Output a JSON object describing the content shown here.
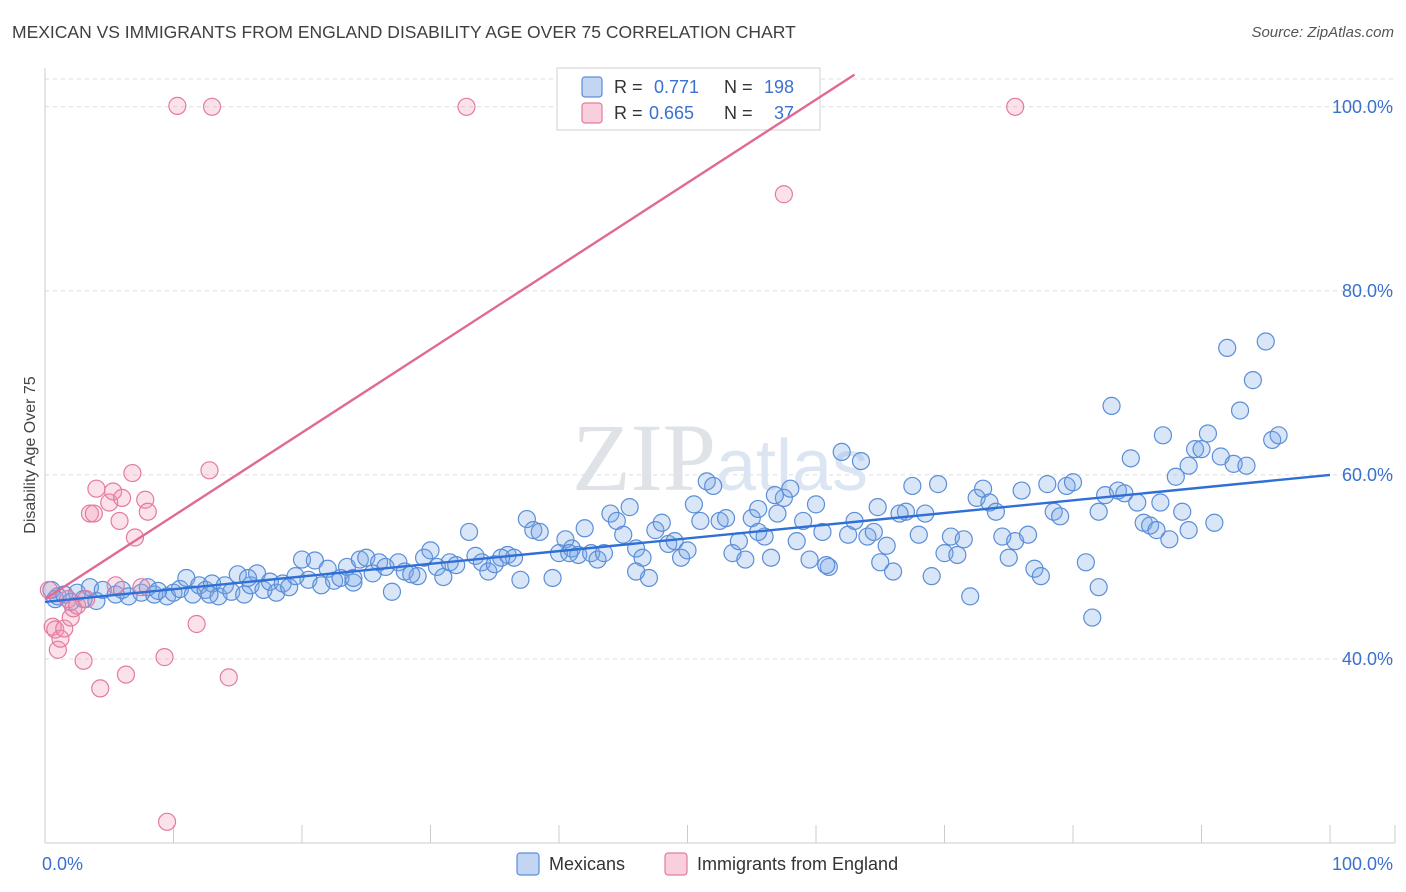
{
  "title": "MEXICAN VS IMMIGRANTS FROM ENGLAND DISABILITY AGE OVER 75 CORRELATION CHART",
  "source": "Source: ZipAtlas.com",
  "watermark": "ZIPatlas",
  "chart_data": {
    "type": "scatter",
    "ylabel": "Disability Age Over 75",
    "xlim": [
      0,
      100
    ],
    "ylim": [
      20,
      104
    ],
    "x_tick_labels": [
      {
        "value": 0,
        "label": "0.0%"
      },
      {
        "value": 100,
        "label": "100.0%"
      }
    ],
    "y_ticks": [
      {
        "value": 40,
        "label": "40.0%"
      },
      {
        "value": 60,
        "label": "60.0%"
      },
      {
        "value": 80,
        "label": "80.0%"
      },
      {
        "value": 100,
        "label": "100.0%"
      }
    ],
    "legend": {
      "r_label": "R =",
      "n_label": "N =",
      "entries": [
        {
          "name": "Mexicans",
          "r": "0.771",
          "n": "198",
          "color": "#8db4ea",
          "stroke": "#3a70d0"
        },
        {
          "name": "Immigrants from England",
          "r": "0.665",
          "n": "37",
          "color": "#f4a9c1",
          "stroke": "#e0608e"
        }
      ]
    },
    "series": [
      {
        "name": "Mexicans",
        "fill": "rgba(120,165,230,0.28)",
        "stroke": "#5b8ed8",
        "trend": {
          "x0": 0,
          "y0": 46.2,
          "x1": 100,
          "y1": 60.0,
          "color": "#2f6fd6"
        },
        "points": [
          [
            0.5,
            47.5
          ],
          [
            0.8,
            46.5
          ],
          [
            1.0,
            46.8
          ],
          [
            1.5,
            47.0
          ],
          [
            2.0,
            46.2
          ],
          [
            2.5,
            47.2
          ],
          [
            3.0,
            46.5
          ],
          [
            3.5,
            47.8
          ],
          [
            4.0,
            46.3
          ],
          [
            4.5,
            47.5
          ],
          [
            5.5,
            47.0
          ],
          [
            6.0,
            47.5
          ],
          [
            6.5,
            46.8
          ],
          [
            7.5,
            47.2
          ],
          [
            8.0,
            47.8
          ],
          [
            8.5,
            47.0
          ],
          [
            9.5,
            46.8
          ],
          [
            10.0,
            47.2
          ],
          [
            10.5,
            47.6
          ],
          [
            11.0,
            48.8
          ],
          [
            11.5,
            47.0
          ],
          [
            12.0,
            48.0
          ],
          [
            12.5,
            47.5
          ],
          [
            13.0,
            48.2
          ],
          [
            13.5,
            46.8
          ],
          [
            14.0,
            48.0
          ],
          [
            14.5,
            47.3
          ],
          [
            15.0,
            49.2
          ],
          [
            15.5,
            47.0
          ],
          [
            16.0,
            48.0
          ],
          [
            16.5,
            49.3
          ],
          [
            17.0,
            47.5
          ],
          [
            17.5,
            48.4
          ],
          [
            18.0,
            47.2
          ],
          [
            18.5,
            48.2
          ],
          [
            19.0,
            47.8
          ],
          [
            20.0,
            50.8
          ],
          [
            20.5,
            48.6
          ],
          [
            21.0,
            50.7
          ],
          [
            21.5,
            48.0
          ],
          [
            22.0,
            49.8
          ],
          [
            22.5,
            48.5
          ],
          [
            23.0,
            48.8
          ],
          [
            23.5,
            50.0
          ],
          [
            24.0,
            48.3
          ],
          [
            24.5,
            50.8
          ],
          [
            25.0,
            51.0
          ],
          [
            25.5,
            49.3
          ],
          [
            26.0,
            50.5
          ],
          [
            26.5,
            50.0
          ],
          [
            27.0,
            47.3
          ],
          [
            27.5,
            50.5
          ],
          [
            28.0,
            49.5
          ],
          [
            29.0,
            49.0
          ],
          [
            29.5,
            51.0
          ],
          [
            30.0,
            51.8
          ],
          [
            30.5,
            50.0
          ],
          [
            31.0,
            48.9
          ],
          [
            31.5,
            50.5
          ],
          [
            32.0,
            50.2
          ],
          [
            33.0,
            53.8
          ],
          [
            33.5,
            51.2
          ],
          [
            34.0,
            50.5
          ],
          [
            34.5,
            49.5
          ],
          [
            35.0,
            50.3
          ],
          [
            36.0,
            51.3
          ],
          [
            36.5,
            51.0
          ],
          [
            37.0,
            48.6
          ],
          [
            37.5,
            55.2
          ],
          [
            38.0,
            54.0
          ],
          [
            38.5,
            53.8
          ],
          [
            39.5,
            48.8
          ],
          [
            40.0,
            51.5
          ],
          [
            40.5,
            53.0
          ],
          [
            41.0,
            52.0
          ],
          [
            41.5,
            51.3
          ],
          [
            42.0,
            54.2
          ],
          [
            42.5,
            51.5
          ],
          [
            43.0,
            50.8
          ],
          [
            43.5,
            51.5
          ],
          [
            44.0,
            55.8
          ],
          [
            44.5,
            55.0
          ],
          [
            45.0,
            53.5
          ],
          [
            45.5,
            56.5
          ],
          [
            46.0,
            52.0
          ],
          [
            46.5,
            51.0
          ],
          [
            47.0,
            48.8
          ],
          [
            47.5,
            54.0
          ],
          [
            48.0,
            54.8
          ],
          [
            48.5,
            52.5
          ],
          [
            49.0,
            52.8
          ],
          [
            49.5,
            51.0
          ],
          [
            50.0,
            51.8
          ],
          [
            50.5,
            56.8
          ],
          [
            51.0,
            55.0
          ],
          [
            51.5,
            59.3
          ],
          [
            52.0,
            58.8
          ],
          [
            52.5,
            55.0
          ],
          [
            53.0,
            55.3
          ],
          [
            53.5,
            51.5
          ],
          [
            54.0,
            52.8
          ],
          [
            54.5,
            50.8
          ],
          [
            55.0,
            55.3
          ],
          [
            55.5,
            56.3
          ],
          [
            56.0,
            53.3
          ],
          [
            56.5,
            51.0
          ],
          [
            57.0,
            55.8
          ],
          [
            57.5,
            57.5
          ],
          [
            58.0,
            58.5
          ],
          [
            58.5,
            52.8
          ],
          [
            59.0,
            55.0
          ],
          [
            59.5,
            50.8
          ],
          [
            60.0,
            56.8
          ],
          [
            60.5,
            53.8
          ],
          [
            61.0,
            50.0
          ],
          [
            62.0,
            62.5
          ],
          [
            62.5,
            53.5
          ],
          [
            63.0,
            55.0
          ],
          [
            63.5,
            61.5
          ],
          [
            64.0,
            53.3
          ],
          [
            64.5,
            53.8
          ],
          [
            65.0,
            50.5
          ],
          [
            65.5,
            52.3
          ],
          [
            66.0,
            49.5
          ],
          [
            67.0,
            56.0
          ],
          [
            67.5,
            58.8
          ],
          [
            68.0,
            53.5
          ],
          [
            68.5,
            55.8
          ],
          [
            69.0,
            49.0
          ],
          [
            69.5,
            59.0
          ],
          [
            70.0,
            51.5
          ],
          [
            70.5,
            53.3
          ],
          [
            71.0,
            51.3
          ],
          [
            72.0,
            46.8
          ],
          [
            72.5,
            57.5
          ],
          [
            73.0,
            58.5
          ],
          [
            73.5,
            57.0
          ],
          [
            74.0,
            56.0
          ],
          [
            74.5,
            53.3
          ],
          [
            75.5,
            52.8
          ],
          [
            76.0,
            58.3
          ],
          [
            76.5,
            53.5
          ],
          [
            77.0,
            49.8
          ],
          [
            77.5,
            49.0
          ],
          [
            78.0,
            59.0
          ],
          [
            78.5,
            56.0
          ],
          [
            79.0,
            55.5
          ],
          [
            79.5,
            58.8
          ],
          [
            80.0,
            59.2
          ],
          [
            81.0,
            50.5
          ],
          [
            81.5,
            44.5
          ],
          [
            82.0,
            47.8
          ],
          [
            82.5,
            57.8
          ],
          [
            83.0,
            67.5
          ],
          [
            83.5,
            58.3
          ],
          [
            84.0,
            58.0
          ],
          [
            84.5,
            61.8
          ],
          [
            85.0,
            57.0
          ],
          [
            85.5,
            54.8
          ],
          [
            86.0,
            54.5
          ],
          [
            86.5,
            54.0
          ],
          [
            87.0,
            64.3
          ],
          [
            87.5,
            53.0
          ],
          [
            88.0,
            59.8
          ],
          [
            88.5,
            56.0
          ],
          [
            89.0,
            61.0
          ],
          [
            89.5,
            62.8
          ],
          [
            90.0,
            62.8
          ],
          [
            90.5,
            64.5
          ],
          [
            91.0,
            54.8
          ],
          [
            91.5,
            62.0
          ],
          [
            92.0,
            73.8
          ],
          [
            92.5,
            61.2
          ],
          [
            93.0,
            67.0
          ],
          [
            93.5,
            61.0
          ],
          [
            94.0,
            70.3
          ],
          [
            95.0,
            74.5
          ],
          [
            95.5,
            63.8
          ],
          [
            96.0,
            64.3
          ],
          [
            55.5,
            53.8
          ],
          [
            24.0,
            48.8
          ],
          [
            35.5,
            51.0
          ],
          [
            46.0,
            49.5
          ],
          [
            66.5,
            55.8
          ],
          [
            75.0,
            51.0
          ],
          [
            82.0,
            56.0
          ],
          [
            86.8,
            57.0
          ],
          [
            89.0,
            54.0
          ],
          [
            56.8,
            57.8
          ],
          [
            64.8,
            56.5
          ],
          [
            71.5,
            53.0
          ],
          [
            60.8,
            50.2
          ],
          [
            40.8,
            51.5
          ],
          [
            28.5,
            49.2
          ],
          [
            19.5,
            49.0
          ],
          [
            15.8,
            48.8
          ],
          [
            12.8,
            47.0
          ],
          [
            8.8,
            47.4
          ]
        ]
      },
      {
        "name": "Immigrants from England",
        "fill": "rgba(240,150,180,0.28)",
        "stroke": "#e57a9f",
        "trend": {
          "x0": 0,
          "y0": 46.5,
          "x1": 63,
          "y1": 103.5,
          "color": "#e06a94"
        },
        "points": [
          [
            0.3,
            47.5
          ],
          [
            0.6,
            43.5
          ],
          [
            0.8,
            43.2
          ],
          [
            1.0,
            41.0
          ],
          [
            1.2,
            42.2
          ],
          [
            1.5,
            43.3
          ],
          [
            1.8,
            46.5
          ],
          [
            2.0,
            44.5
          ],
          [
            2.2,
            45.5
          ],
          [
            2.5,
            45.8
          ],
          [
            3.0,
            39.8
          ],
          [
            3.2,
            46.5
          ],
          [
            3.5,
            55.8
          ],
          [
            3.8,
            55.8
          ],
          [
            4.0,
            58.5
          ],
          [
            4.3,
            36.8
          ],
          [
            5.0,
            57.0
          ],
          [
            5.3,
            58.2
          ],
          [
            5.5,
            48.0
          ],
          [
            5.8,
            55.0
          ],
          [
            6.0,
            57.5
          ],
          [
            6.3,
            38.3
          ],
          [
            6.8,
            60.2
          ],
          [
            7.0,
            53.2
          ],
          [
            7.5,
            47.8
          ],
          [
            7.8,
            57.3
          ],
          [
            8.0,
            56.0
          ],
          [
            9.3,
            40.2
          ],
          [
            9.5,
            22.3
          ],
          [
            10.3,
            100.1
          ],
          [
            11.8,
            43.8
          ],
          [
            12.8,
            60.5
          ],
          [
            13.0,
            100.0
          ],
          [
            14.3,
            38.0
          ],
          [
            32.8,
            100.0
          ],
          [
            57.5,
            90.5
          ],
          [
            75.5,
            100.0
          ]
        ]
      }
    ]
  }
}
